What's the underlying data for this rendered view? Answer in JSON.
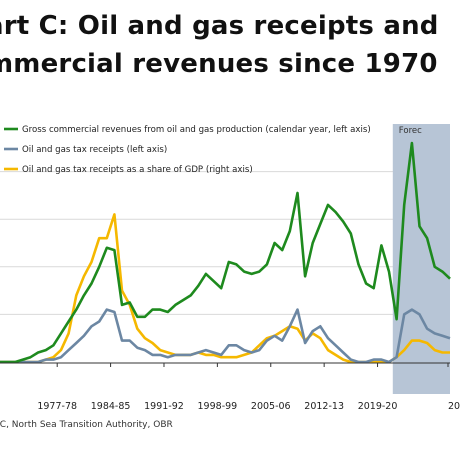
{
  "title_line1": "art C: Oil and gas receipts and",
  "title_line2": "mmercial revenues since 1970",
  "source": "RC, North Sea Transition Authority, OBR",
  "forecast_label": "Forec",
  "colors": {
    "green": "#1e8a1e",
    "blue": "#6c87a3",
    "yellow": "#f5b800",
    "forecast": "#b7c5d6",
    "axis": "#333333",
    "grid": "#d9d9d9"
  },
  "chart_data": {
    "type": "line",
    "x_ticks": [
      "1977-78",
      "1984-85",
      "1991-92",
      "1998-99",
      "2005-06",
      "2012-13",
      "2019-20",
      "20"
    ],
    "forecast_start": 2022,
    "xlim": [
      1970,
      2029
    ],
    "ylim": [
      0,
      100
    ],
    "series": [
      {
        "name": "Gross commercial revenues from oil and gas production (calendar year, left axis)",
        "color": "#1e8a1e",
        "x": [
          1970,
          1971,
          1972,
          1973,
          1974,
          1975,
          1976,
          1977,
          1978,
          1979,
          1980,
          1981,
          1982,
          1983,
          1984,
          1985,
          1986,
          1987,
          1988,
          1989,
          1990,
          1991,
          1992,
          1993,
          1994,
          1995,
          1996,
          1997,
          1998,
          1999,
          2000,
          2001,
          2002,
          2003,
          2004,
          2005,
          2006,
          2007,
          2008,
          2009,
          2010,
          2011,
          2012,
          2013,
          2014,
          2015,
          2016,
          2017,
          2018,
          2019,
          2020,
          2021,
          2022,
          2023,
          2024,
          2025,
          2026,
          2027,
          2028,
          2029
        ],
        "y": [
          0,
          0,
          0,
          1,
          2,
          4,
          5,
          7,
          12,
          17,
          22,
          28,
          33,
          40,
          48,
          47,
          24,
          25,
          19,
          19,
          22,
          22,
          21,
          24,
          26,
          28,
          32,
          37,
          34,
          31,
          42,
          41,
          38,
          37,
          38,
          41,
          50,
          47,
          55,
          71,
          36,
          50,
          58,
          66,
          63,
          59,
          54,
          41,
          33,
          31,
          49,
          38,
          18,
          66,
          92,
          57,
          52,
          40,
          38,
          35
        ]
      },
      {
        "name": "Oil and gas tax receipts (left axis)",
        "color": "#6c87a3",
        "x": [
          1970,
          1971,
          1972,
          1973,
          1974,
          1975,
          1976,
          1977,
          1978,
          1979,
          1980,
          1981,
          1982,
          1983,
          1984,
          1985,
          1986,
          1987,
          1988,
          1989,
          1990,
          1991,
          1992,
          1993,
          1994,
          1995,
          1996,
          1997,
          1998,
          1999,
          2000,
          2001,
          2002,
          2003,
          2004,
          2005,
          2006,
          2007,
          2008,
          2009,
          2010,
          2011,
          2012,
          2013,
          2014,
          2015,
          2016,
          2017,
          2018,
          2019,
          2020,
          2021,
          2022,
          2023,
          2024,
          2025,
          2026,
          2027,
          2028,
          2029
        ],
        "y": [
          0,
          0,
          0,
          0,
          0,
          0,
          1,
          1,
          2,
          5,
          8,
          11,
          15,
          17,
          22,
          21,
          9,
          9,
          6,
          5,
          3,
          3,
          2,
          3,
          3,
          3,
          4,
          5,
          4,
          3,
          7,
          7,
          5,
          4,
          5,
          9,
          11,
          9,
          15,
          22,
          8,
          13,
          15,
          10,
          7,
          4,
          1,
          0,
          0,
          1,
          1,
          0,
          2,
          20,
          22,
          20,
          14,
          12,
          11,
          10
        ]
      },
      {
        "name": "Oil and gas tax receipts as a share of GDP (right axis)",
        "color": "#f5b800",
        "x": [
          1970,
          1971,
          1972,
          1973,
          1974,
          1975,
          1976,
          1977,
          1978,
          1979,
          1980,
          1981,
          1982,
          1983,
          1984,
          1985,
          1986,
          1987,
          1988,
          1989,
          1990,
          1991,
          1992,
          1993,
          1994,
          1995,
          1996,
          1997,
          1998,
          1999,
          2000,
          2001,
          2002,
          2003,
          2004,
          2005,
          2006,
          2007,
          2008,
          2009,
          2010,
          2011,
          2012,
          2013,
          2014,
          2015,
          2016,
          2017,
          2018,
          2019,
          2020,
          2021,
          2022,
          2023,
          2024,
          2025,
          2026,
          2027,
          2028,
          2029
        ],
        "y": [
          0,
          0,
          0,
          0,
          0,
          0,
          1,
          2,
          5,
          12,
          28,
          36,
          42,
          52,
          52,
          62,
          30,
          24,
          14,
          10,
          8,
          5,
          4,
          3,
          3,
          3,
          4,
          3,
          3,
          2,
          2,
          2,
          3,
          4,
          7,
          10,
          11,
          13,
          15,
          14,
          9,
          12,
          10,
          5,
          3,
          1,
          0,
          0,
          0,
          0,
          0,
          0,
          2,
          5,
          9,
          9,
          8,
          5,
          4,
          4
        ]
      }
    ]
  }
}
